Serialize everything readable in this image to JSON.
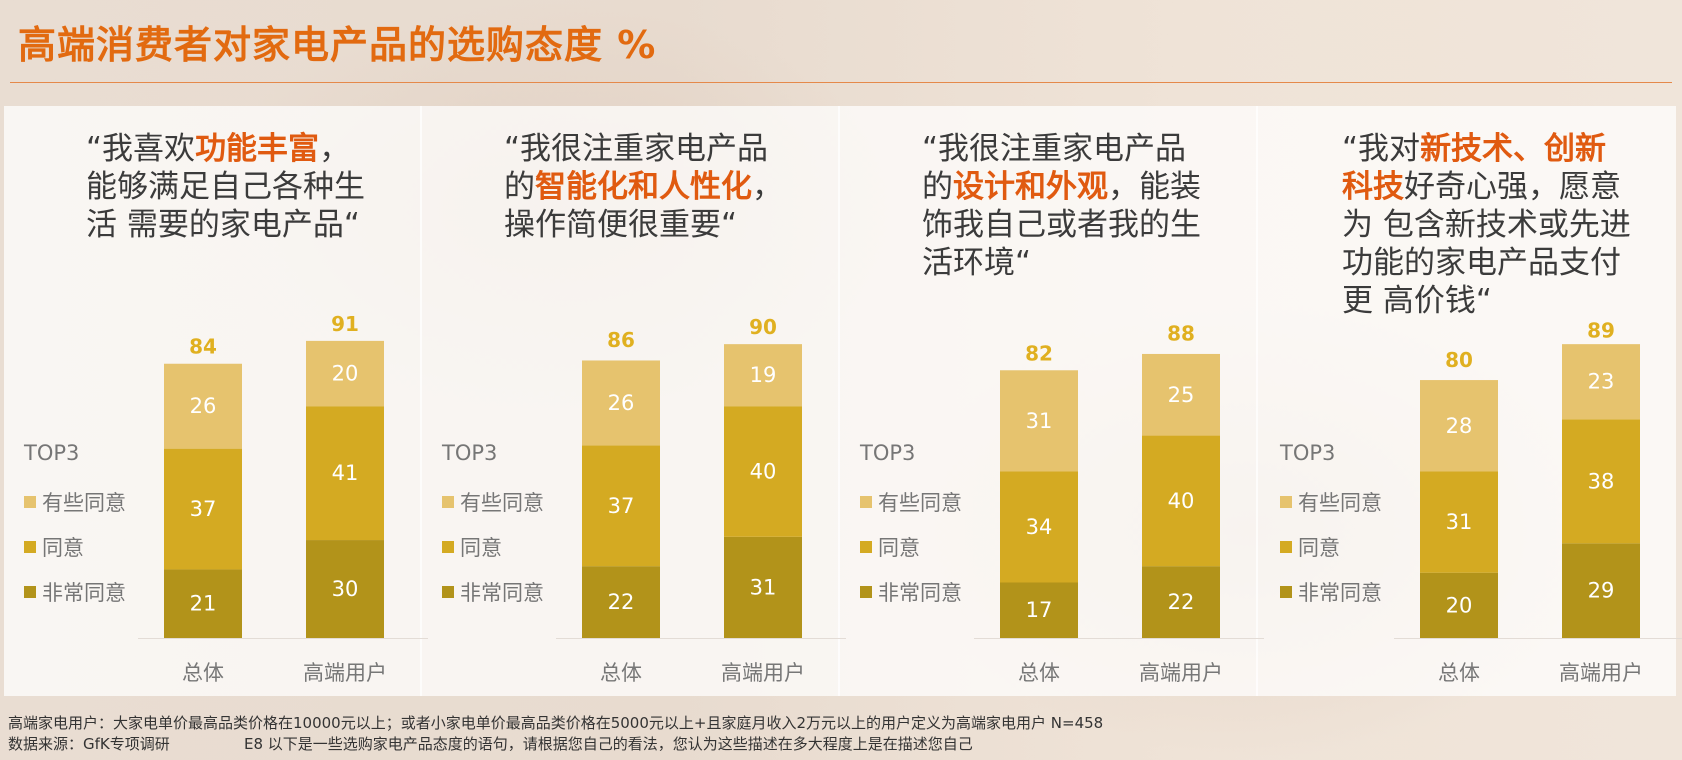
{
  "title": "高端消费者对家电产品的选购态度 %",
  "colors": {
    "title": "#e26a10",
    "some_agree": "#e6c36e",
    "agree": "#d4aa22",
    "strongly_agree": "#b2931a",
    "total_label": "#e0b020"
  },
  "legend": {
    "heading": "TOP3",
    "items": [
      "有些同意",
      "同意",
      "非常同意"
    ]
  },
  "panels": [
    {
      "quote_parts": [
        {
          "t": "“我喜欢",
          "hl": false
        },
        {
          "t": "功能丰富",
          "hl": true
        },
        {
          "t": "，能够满足自己各种生活 需要的家电产品“",
          "hl": false
        }
      ]
    },
    {
      "quote_parts": [
        {
          "t": "“我很注重家电产品的",
          "hl": false
        },
        {
          "t": "智能化和人性化",
          "hl": true
        },
        {
          "t": "，操作简便很重要“",
          "hl": false
        }
      ]
    },
    {
      "quote_parts": [
        {
          "t": "“我很注重家电产品的",
          "hl": false
        },
        {
          "t": "设计和外观",
          "hl": true
        },
        {
          "t": "，能装饰我自己或者我的生活环境“",
          "hl": false
        }
      ]
    },
    {
      "quote_parts": [
        {
          "t": "“我对",
          "hl": false
        },
        {
          "t": "新技术、创新科技",
          "hl": true
        },
        {
          "t": "好奇心强，愿意为 包含新技术或先进功能的家电产品支付更 高价钱“",
          "hl": false
        }
      ]
    }
  ],
  "chart_data": [
    {
      "type": "bar",
      "stacked": true,
      "categories": [
        "总体",
        "高端用户"
      ],
      "series": [
        {
          "name": "非常同意",
          "values": [
            21,
            30
          ]
        },
        {
          "name": "同意",
          "values": [
            37,
            41
          ]
        },
        {
          "name": "有些同意",
          "values": [
            26,
            20
          ]
        }
      ],
      "totals": [
        84,
        91
      ],
      "ylim": [
        0,
        100
      ]
    },
    {
      "type": "bar",
      "stacked": true,
      "categories": [
        "总体",
        "高端用户"
      ],
      "series": [
        {
          "name": "非常同意",
          "values": [
            22,
            31
          ]
        },
        {
          "name": "同意",
          "values": [
            37,
            40
          ]
        },
        {
          "name": "有些同意",
          "values": [
            26,
            19
          ]
        }
      ],
      "totals": [
        86,
        90
      ],
      "ylim": [
        0,
        100
      ]
    },
    {
      "type": "bar",
      "stacked": true,
      "categories": [
        "总体",
        "高端用户"
      ],
      "series": [
        {
          "name": "非常同意",
          "values": [
            17,
            22
          ]
        },
        {
          "name": "同意",
          "values": [
            34,
            40
          ]
        },
        {
          "name": "有些同意",
          "values": [
            31,
            25
          ]
        }
      ],
      "totals": [
        82,
        88
      ],
      "ylim": [
        0,
        100
      ]
    },
    {
      "type": "bar",
      "stacked": true,
      "categories": [
        "总体",
        "高端用户"
      ],
      "series": [
        {
          "name": "非常同意",
          "values": [
            20,
            29
          ]
        },
        {
          "name": "同意",
          "values": [
            31,
            38
          ]
        },
        {
          "name": "有些同意",
          "values": [
            28,
            23
          ]
        }
      ],
      "totals": [
        80,
        89
      ],
      "ylim": [
        0,
        100
      ]
    }
  ],
  "footnote": {
    "line1": "高端家电用户：大家电单价最高品类价格在10000元以上；或者小家电单价最高品类价格在5000元以上+且家庭月收入2万元以上的用户定义为高端家电用户 N=458",
    "source": "数据来源：GfK专项调研",
    "question": "E8 以下是一些选购家电产品态度的语句，请根据您自己的看法，您认为这些描述在多大程度上是在描述您自己"
  }
}
